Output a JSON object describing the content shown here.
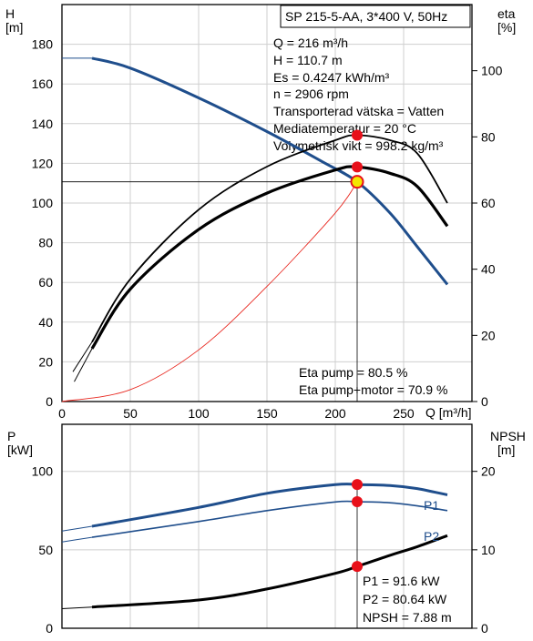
{
  "colors": {
    "blue": "#1f4e8c",
    "black": "#000000",
    "red_marker": "#e8101a",
    "yellow_marker": "#f3e600",
    "system_curve": "#e8271f",
    "grid": "#cfcfcf"
  },
  "top": {
    "y_left_title": "H",
    "y_left_unit": "[m]",
    "y_right_title": "eta",
    "y_right_unit": "[%]",
    "x_label": "Q [m³/h]",
    "info_box": "SP 215-5-AA, 3*400 V, 50Hz",
    "details": [
      "Q = 216 m³/h",
      "H = 110.7 m",
      "Es = 0.4247 kWh/m³",
      "n = 2906 rpm",
      "Transporterad vätska = Vatten",
      "Mediatemperatur = 20 °C",
      "Volymetrisk vikt = 998.2 kg/m³"
    ],
    "eta_pump_text": "Eta pump = 80.5 %",
    "eta_pump_motor_text": "Eta pump+motor = 70.9 %",
    "x_ticks": [
      "0",
      "50",
      "100",
      "150",
      "200",
      "250"
    ],
    "y_left_ticks": [
      "0",
      "20",
      "40",
      "60",
      "80",
      "100",
      "120",
      "140",
      "160",
      "180"
    ],
    "y_right_ticks": [
      "0",
      "20",
      "40",
      "60",
      "80",
      "100"
    ]
  },
  "bottom": {
    "y_left_title": "P",
    "y_left_unit": "[kW]",
    "y_right_title": "NPSH",
    "y_right_unit": "[m]",
    "y_left_ticks": [
      "0",
      "50",
      "100"
    ],
    "y_right_ticks": [
      "0",
      "10",
      "20"
    ],
    "label_p1": "P1",
    "label_p2": "P2",
    "details": [
      "P1 = 91.6 kW",
      "P2 = 80.64 kW",
      "NPSH = 7.88 m"
    ]
  },
  "chart_data": [
    {
      "type": "line",
      "x_unit": "m³/h",
      "xlim": [
        0,
        300
      ],
      "ylim": [
        0,
        200
      ],
      "y2lim": [
        0,
        120
      ],
      "duty_point": {
        "Q": 216,
        "H": 110.7,
        "eta_pump": 80.5,
        "eta_pump_motor": 70.9
      },
      "series": [
        {
          "axis": "left",
          "x": [
            0,
            22,
            50,
            100,
            150,
            190,
            216,
            240,
            260,
            282
          ],
          "y": [
            173,
            173,
            168,
            153,
            136,
            121,
            110.7,
            95,
            78,
            59
          ]
        },
        {
          "axis": "left",
          "extension": true,
          "x": [
            22,
            5,
            0
          ],
          "y": [
            173,
            173,
            173
          ]
        },
        {
          "axis": "right",
          "x": [
            22,
            50,
            100,
            150,
            200,
            216,
            240,
            260,
            282
          ],
          "y": [
            18,
            37,
            58,
            71,
            79,
            80.5,
            79,
            75,
            60
          ]
        },
        {
          "axis": "right",
          "x": [
            22,
            50,
            100,
            150,
            200,
            216,
            240,
            260,
            282
          ],
          "y": [
            16,
            34,
            52,
            63,
            70,
            70.9,
            69,
            65,
            53
          ]
        },
        {
          "axis": "left",
          "x": [
            0,
            50,
            100,
            150,
            200,
            216
          ],
          "y": [
            0,
            6,
            26,
            58,
            95,
            110.7
          ]
        }
      ]
    },
    {
      "type": "line",
      "x_unit": "m³/h",
      "xlim": [
        0,
        300
      ],
      "ylim": [
        0,
        130
      ],
      "y2lim": [
        0,
        26
      ],
      "duty_point": {
        "Q": 216,
        "P1": 91.6,
        "P2": 80.64,
        "NPSH": 7.88
      },
      "series": [
        {
          "name": "P1",
          "axis": "left",
          "x": [
            0,
            22,
            100,
            150,
            200,
            216,
            240,
            260,
            282
          ],
          "y": [
            62,
            65,
            77,
            86,
            91.5,
            91.6,
            91,
            89,
            85
          ]
        },
        {
          "name": "P2",
          "axis": "left",
          "x": [
            0,
            22,
            100,
            150,
            200,
            216,
            240,
            260,
            282
          ],
          "y": [
            55,
            58,
            68,
            75,
            80.5,
            80.64,
            80,
            78,
            75
          ]
        },
        {
          "axis": "right",
          "x": [
            0,
            22,
            100,
            150,
            200,
            216,
            240,
            260,
            282
          ],
          "y": [
            2.5,
            2.7,
            3.6,
            5.0,
            7.0,
            7.88,
            9.3,
            10.4,
            11.8
          ]
        }
      ]
    }
  ]
}
